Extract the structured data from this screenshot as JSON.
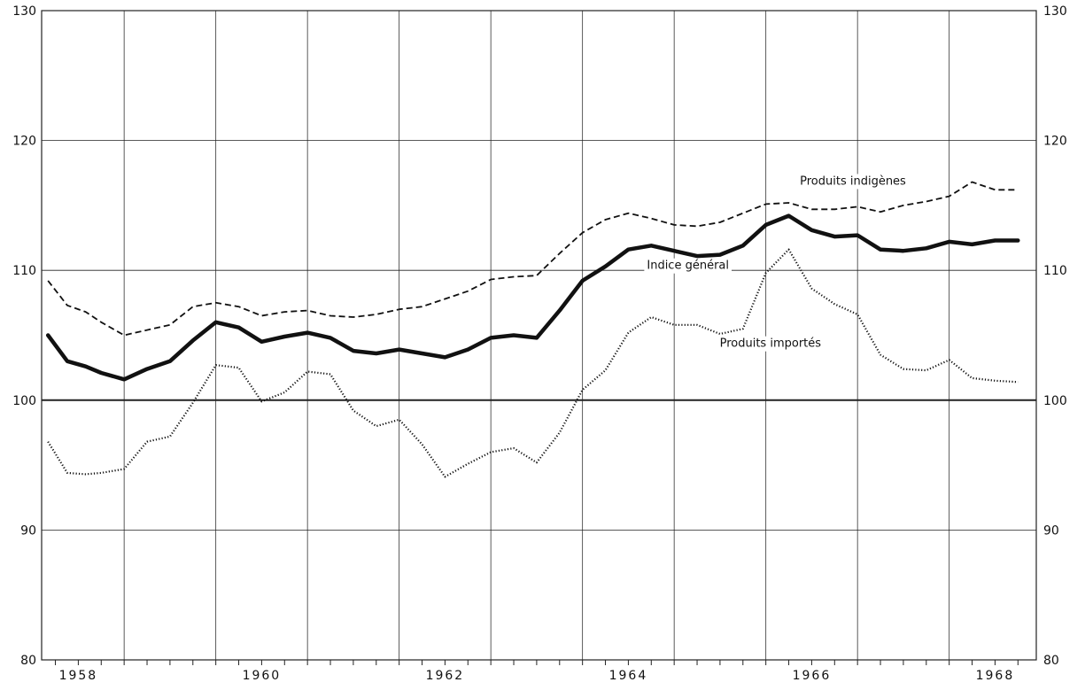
{
  "chart_data": {
    "type": "line",
    "title": "",
    "xlabel": "",
    "ylabel": "",
    "xlim": [
      1957.6,
      1968.45
    ],
    "ylim": [
      80,
      130
    ],
    "yticks": [
      80,
      90,
      100,
      110,
      120,
      130
    ],
    "xtick_labels": [
      "1958",
      "1960",
      "1962",
      "1964",
      "1966",
      "1968"
    ],
    "grid": true,
    "reference_line": 100,
    "series": [
      {
        "name": "Produits indigènes",
        "style": "dashed",
        "color": "#111111",
        "x": [
          1957.67,
          1957.88,
          1958.08,
          1958.25,
          1958.5,
          1958.75,
          1959.0,
          1959.25,
          1959.5,
          1959.75,
          1960.0,
          1960.25,
          1960.5,
          1960.75,
          1961.0,
          1961.25,
          1961.5,
          1961.75,
          1962.0,
          1962.25,
          1962.5,
          1962.75,
          1963.0,
          1963.25,
          1963.5,
          1963.75,
          1964.0,
          1964.25,
          1964.5,
          1964.75,
          1965.0,
          1965.25,
          1965.5,
          1965.75,
          1966.0,
          1966.25,
          1966.5,
          1966.75,
          1967.0,
          1967.25,
          1967.5,
          1967.75,
          1968.0,
          1968.25
        ],
        "y": [
          109.2,
          107.3,
          106.8,
          106.0,
          105.0,
          105.4,
          105.8,
          107.2,
          107.5,
          107.2,
          106.5,
          106.8,
          106.9,
          106.5,
          106.4,
          106.6,
          107.0,
          107.2,
          107.8,
          108.4,
          109.3,
          109.5,
          109.6,
          111.3,
          112.9,
          113.9,
          114.4,
          114.0,
          113.5,
          113.4,
          113.7,
          114.4,
          115.1,
          115.2,
          114.7,
          114.7,
          114.9,
          114.5,
          115.0,
          115.3,
          115.7,
          116.8,
          116.2,
          116.2
        ]
      },
      {
        "name": "Indice général",
        "style": "bold",
        "color": "#111111",
        "x": [
          1957.67,
          1957.88,
          1958.08,
          1958.25,
          1958.5,
          1958.75,
          1959.0,
          1959.25,
          1959.5,
          1959.75,
          1960.0,
          1960.25,
          1960.5,
          1960.75,
          1961.0,
          1961.25,
          1961.5,
          1961.75,
          1962.0,
          1962.25,
          1962.5,
          1962.75,
          1963.0,
          1963.25,
          1963.5,
          1963.75,
          1964.0,
          1964.25,
          1964.5,
          1964.75,
          1965.0,
          1965.25,
          1965.5,
          1965.75,
          1966.0,
          1966.25,
          1966.5,
          1966.75,
          1967.0,
          1967.25,
          1967.5,
          1967.75,
          1968.0,
          1968.25
        ],
        "y": [
          105.0,
          103.0,
          102.6,
          102.1,
          101.6,
          102.4,
          103.0,
          104.6,
          106.0,
          105.6,
          104.5,
          104.9,
          105.2,
          104.8,
          103.8,
          103.6,
          103.9,
          103.6,
          103.3,
          103.9,
          104.8,
          105.0,
          104.8,
          106.9,
          109.2,
          110.3,
          111.6,
          111.9,
          111.5,
          111.1,
          111.2,
          111.9,
          113.5,
          114.2,
          113.1,
          112.6,
          112.7,
          111.6,
          111.5,
          111.7,
          112.2,
          112.0,
          112.3,
          112.3
        ]
      },
      {
        "name": "Produits importés",
        "style": "dotted",
        "color": "#111111",
        "x": [
          1957.67,
          1957.88,
          1958.08,
          1958.25,
          1958.5,
          1958.75,
          1959.0,
          1959.25,
          1959.5,
          1959.75,
          1960.0,
          1960.25,
          1960.5,
          1960.75,
          1961.0,
          1961.25,
          1961.5,
          1961.75,
          1962.0,
          1962.25,
          1962.5,
          1962.75,
          1963.0,
          1963.25,
          1963.5,
          1963.75,
          1964.0,
          1964.25,
          1964.5,
          1964.75,
          1965.0,
          1965.25,
          1965.5,
          1965.75,
          1966.0,
          1966.25,
          1966.5,
          1966.75,
          1967.0,
          1967.25,
          1967.5,
          1967.75,
          1968.0,
          1968.25
        ],
        "y": [
          96.8,
          94.4,
          94.3,
          94.4,
          94.7,
          96.8,
          97.2,
          99.8,
          102.7,
          102.5,
          99.9,
          100.6,
          102.2,
          102.0,
          99.2,
          98.0,
          98.5,
          96.6,
          94.1,
          95.1,
          96.0,
          96.3,
          95.2,
          97.5,
          100.8,
          102.3,
          105.2,
          106.4,
          105.8,
          105.8,
          105.1,
          105.5,
          109.8,
          111.6,
          108.6,
          107.4,
          106.6,
          103.5,
          102.4,
          102.3,
          103.1,
          101.7,
          101.5,
          101.4
        ]
      }
    ],
    "annotations": [
      {
        "text": "Produits indigènes",
        "x": 1966.45,
        "y": 116.6
      },
      {
        "text": "Indice général",
        "x": 1964.65,
        "y": 110.1
      },
      {
        "text": "Produits importés",
        "x": 1965.55,
        "y": 104.1
      }
    ]
  }
}
